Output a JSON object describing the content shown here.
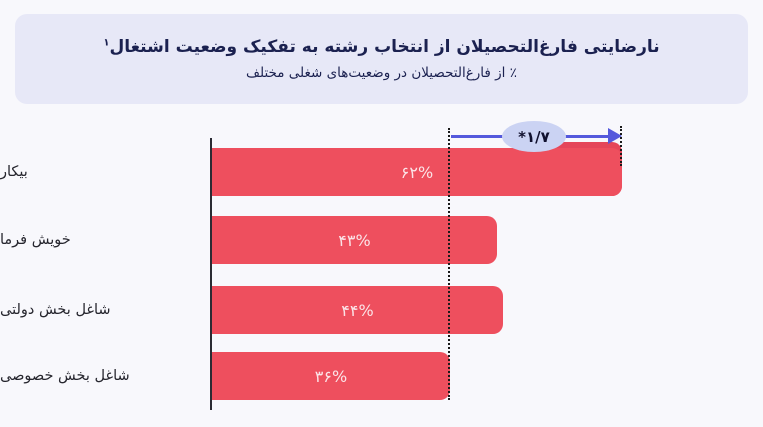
{
  "header": {
    "title": "نارضایتی فارغ‌التحصیلان از انتخاب رشته به تفکیک وضعیت اشتغال",
    "footnote_marker": "۱",
    "subtitle": "٪ از فارغ‌التحصیلان در وضعیت‌های شغلی مختلف"
  },
  "chart_data": {
    "type": "bar",
    "orientation": "horizontal",
    "title": "نارضایتی فارغ‌التحصیلان از انتخاب رشته به تفکیک وضعیت اشتغال",
    "subtitle": "٪ از فارغ‌التحصیلان در وضعیت‌های شغلی مختلف",
    "categories": [
      "بیکار",
      "خویش فرما",
      "شاغل بخش دولتی",
      "شاغل بخش خصوصی"
    ],
    "values": [
      62,
      43,
      44,
      36
    ],
    "value_labels": [
      "۶۲%",
      "۴۳%",
      "۴۴%",
      "۳۶%"
    ],
    "xlim": [
      0,
      83
    ],
    "grid": false,
    "legend": false,
    "annotation": {
      "label": "*۱/۷",
      "from_value": 36,
      "to_value": 62
    }
  },
  "colors": {
    "page_bg": "#F8F8FC",
    "card_bg": "#E7E8F7",
    "title_text": "#1B2150",
    "bar": "#EE4F5E",
    "bar_overlap": "#E5465A",
    "value_text": "#FBE3E7",
    "label_text": "#26262E",
    "axis": "#2B2B33",
    "arrow": "#5459DC",
    "badge_bg": "#CBD3F3",
    "badge_text": "#10102E"
  }
}
